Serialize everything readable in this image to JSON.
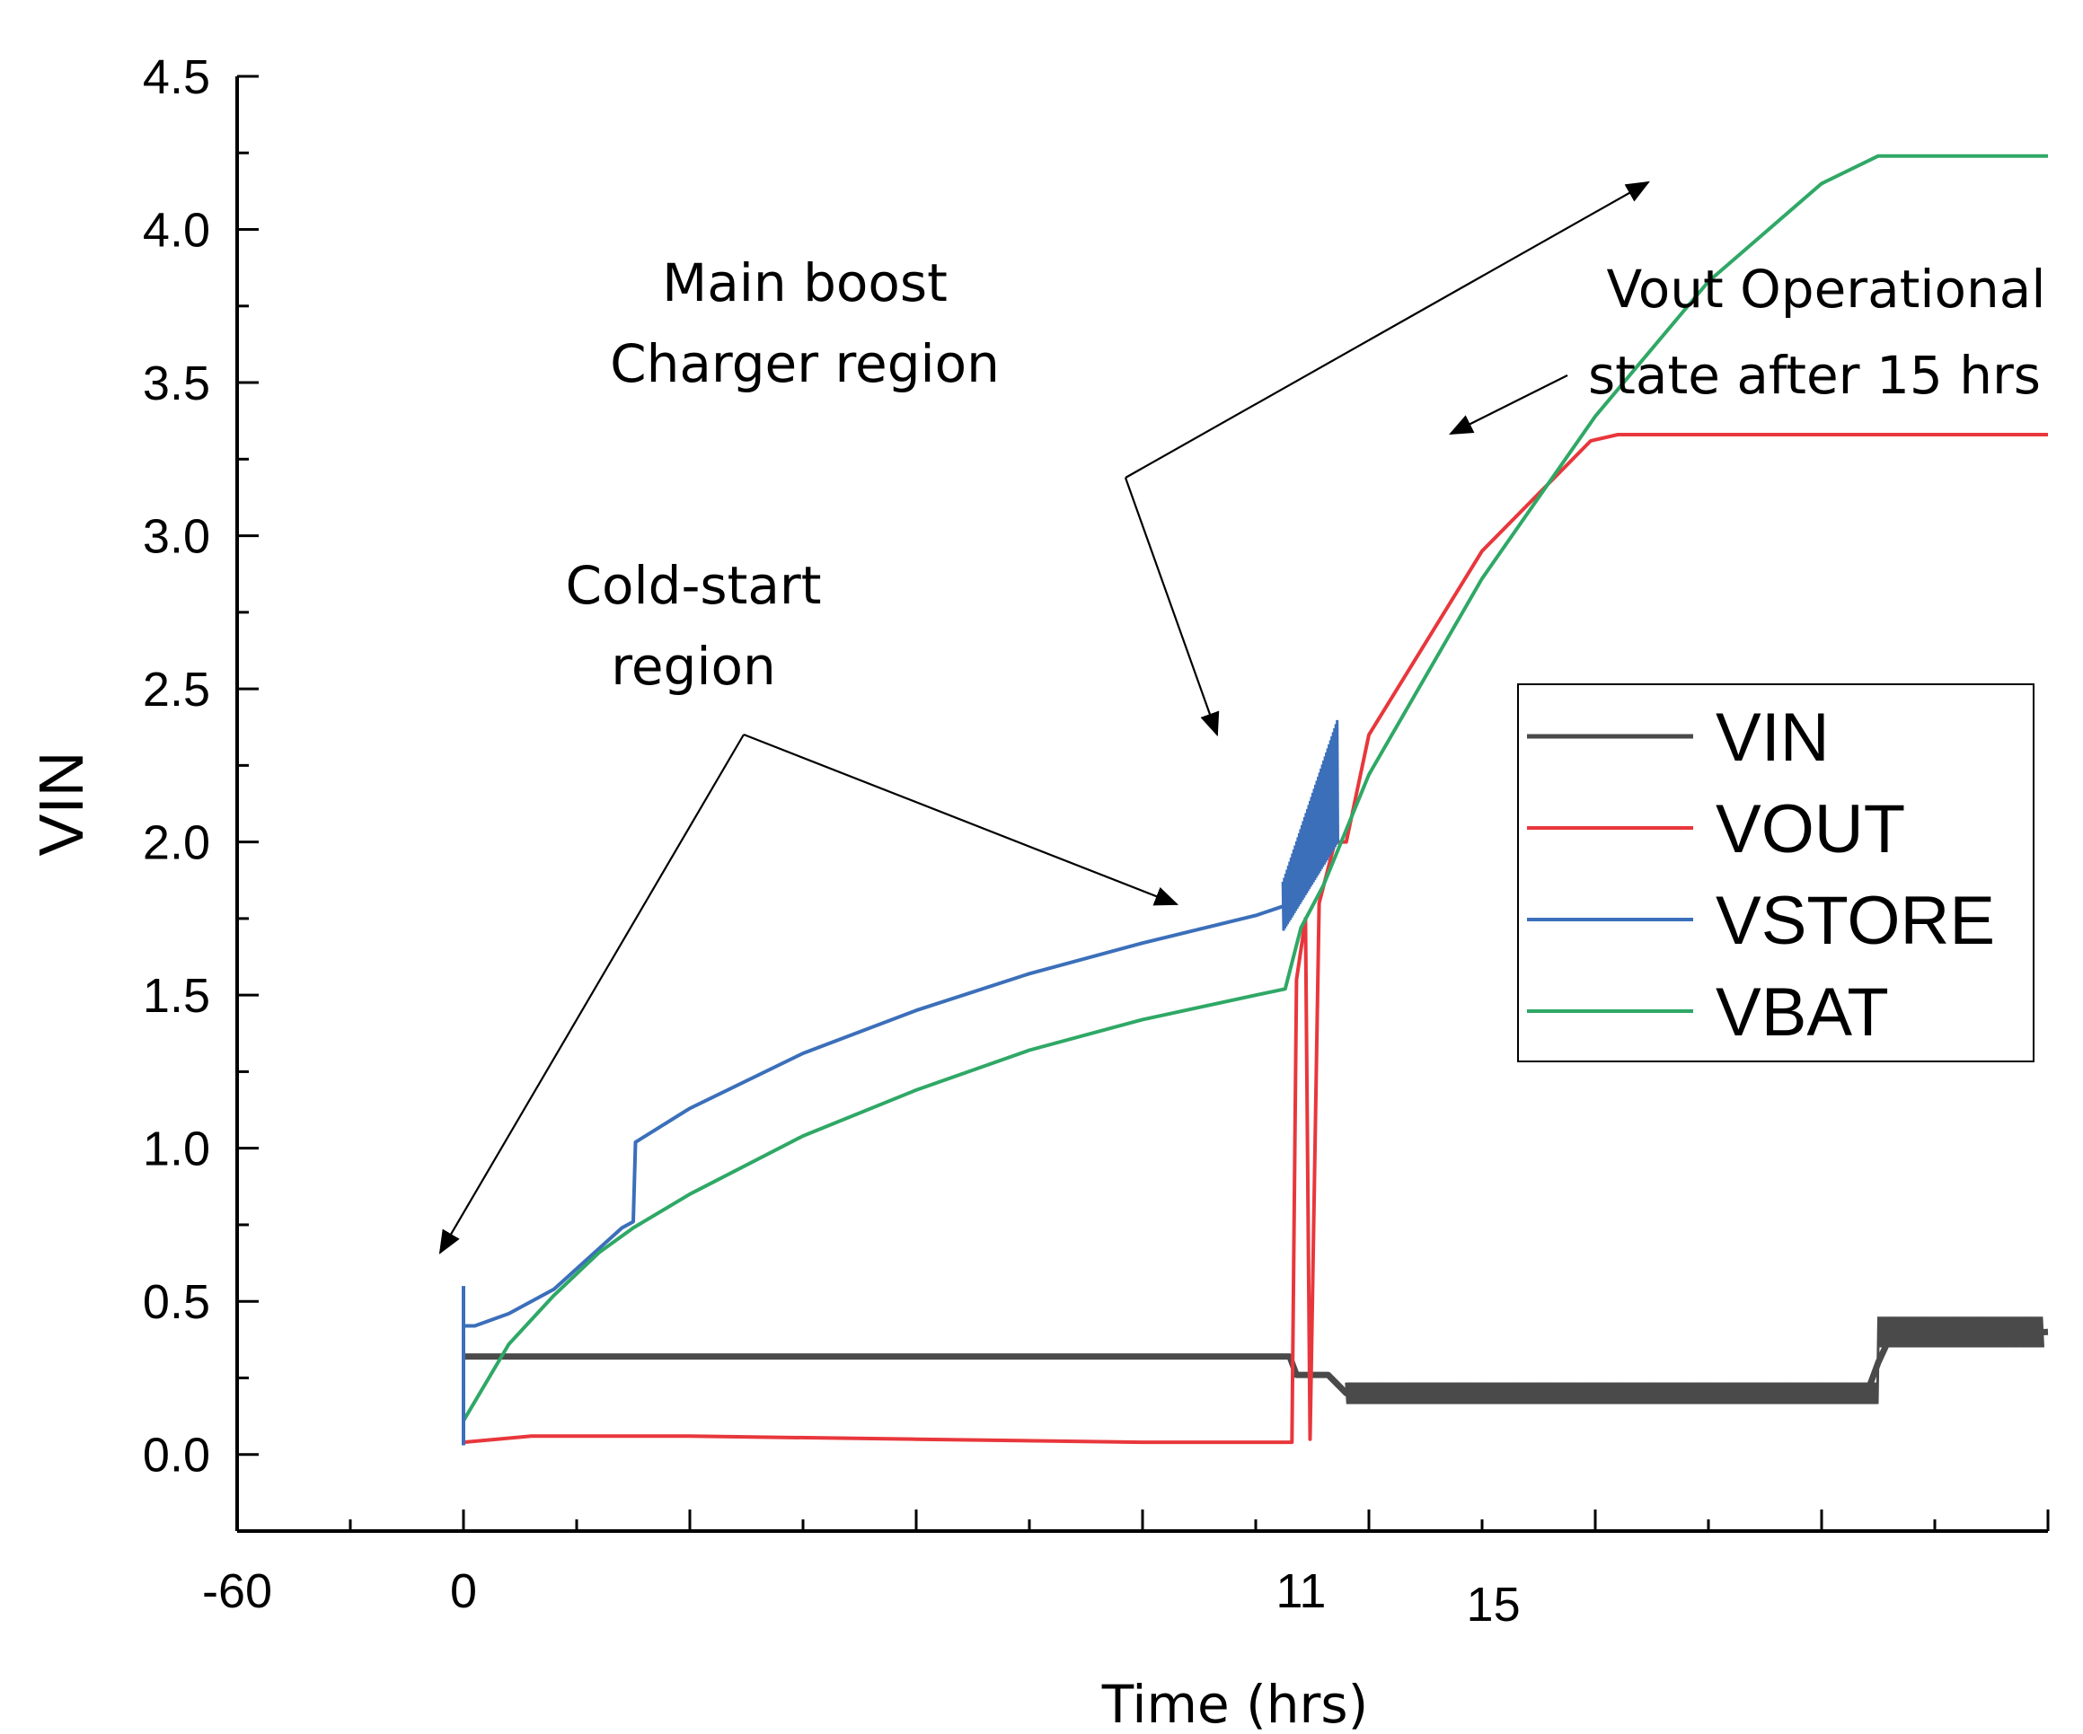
{
  "chart_data": {
    "type": "line",
    "title": "",
    "xlabel": "Time (hrs)",
    "ylabel": "VIN",
    "xlim": [
      -1,
      7
    ],
    "ylim": [
      -0.25,
      4.5
    ],
    "xticklabels": [
      {
        "x": -1,
        "label": "-60"
      },
      {
        "x": 0,
        "label": "0"
      },
      {
        "x": 3.7,
        "label": "11"
      },
      {
        "x": 4.55,
        "label": "15"
      }
    ],
    "yticks": [
      {
        "y": 0.0,
        "label": "0.0"
      },
      {
        "y": 0.5,
        "label": "0.5"
      },
      {
        "y": 1.0,
        "label": "1.0"
      },
      {
        "y": 1.5,
        "label": "1.5"
      },
      {
        "y": 2.0,
        "label": "2.0"
      },
      {
        "y": 2.5,
        "label": "2.5"
      },
      {
        "y": 3.0,
        "label": "3.0"
      },
      {
        "y": 3.5,
        "label": "3.5"
      },
      {
        "y": 4.0,
        "label": "4.0"
      },
      {
        "y": 4.5,
        "label": "4.5"
      }
    ],
    "series": [
      {
        "name": "VIN",
        "color": "#4a4a4a",
        "x": [
          0,
          0.5,
          1.0,
          2.0,
          3.0,
          3.65,
          3.68,
          3.82,
          3.9,
          4.5,
          5.0,
          6.2,
          6.25,
          6.3,
          7.0
        ],
        "y": [
          0.32,
          0.32,
          0.32,
          0.32,
          0.32,
          0.32,
          0.26,
          0.26,
          0.2,
          0.2,
          0.2,
          0.2,
          0.3,
          0.38,
          0.4
        ]
      },
      {
        "name": "VOUT",
        "color": "#e8373c",
        "x": [
          0,
          0.3,
          1.0,
          2.0,
          3.0,
          3.66,
          3.68,
          3.72,
          3.74,
          3.78,
          3.85,
          3.9,
          4.0,
          4.5,
          4.98,
          5.1,
          5.5,
          6.0,
          7.0
        ],
        "y": [
          0.04,
          0.06,
          0.06,
          0.05,
          0.04,
          0.04,
          1.55,
          1.75,
          0.05,
          1.8,
          2.0,
          2.0,
          2.35,
          2.95,
          3.31,
          3.33,
          3.33,
          3.33,
          3.33
        ]
      },
      {
        "name": "VSTORE",
        "color": "#3b6fba",
        "x": [
          0,
          0.02,
          0.05,
          0.2,
          0.4,
          0.7,
          0.75,
          0.76,
          1.0,
          1.5,
          2.0,
          2.5,
          3.0,
          3.5,
          3.62,
          3.66,
          3.7,
          3.74,
          3.78,
          3.82,
          3.86
        ],
        "y": [
          0.42,
          0.42,
          0.42,
          0.46,
          0.54,
          0.74,
          0.76,
          1.02,
          1.13,
          1.31,
          1.45,
          1.57,
          1.67,
          1.76,
          1.79,
          1.8,
          1.85,
          1.9,
          1.95,
          2.05,
          2.2
        ]
      },
      {
        "name": "VBAT",
        "color": "#2fa866",
        "x": [
          0,
          0.2,
          0.4,
          0.6,
          0.75,
          1.0,
          1.5,
          2.0,
          2.5,
          3.0,
          3.5,
          3.63,
          3.7,
          3.8,
          4.0,
          4.5,
          5.0,
          5.5,
          6.0,
          6.25,
          6.5,
          7.0
        ],
        "y": [
          0.11,
          0.36,
          0.52,
          0.66,
          0.74,
          0.85,
          1.04,
          1.19,
          1.32,
          1.42,
          1.5,
          1.52,
          1.72,
          1.86,
          2.22,
          2.86,
          3.39,
          3.83,
          4.15,
          4.24,
          4.24,
          4.24
        ]
      }
    ],
    "legend": {
      "position": "right",
      "entries": [
        "VIN",
        "VOUT",
        "VSTORE",
        "VBAT"
      ]
    },
    "annotations": [
      {
        "lines": [
          "Main boost",
          "Charger region"
        ]
      },
      {
        "lines": [
          "Vout Operational",
          "state after 15 hrs"
        ]
      },
      {
        "lines": [
          "Cold-start",
          "region"
        ]
      }
    ]
  }
}
